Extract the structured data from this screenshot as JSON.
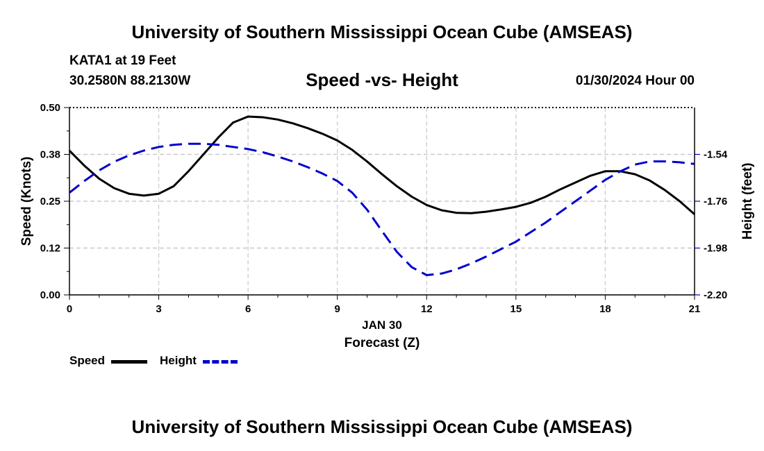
{
  "page": {
    "title": "University of Southern Mississippi Ocean Cube (AMSEAS)",
    "footer_title": "University of Southern Mississippi Ocean Cube (AMSEAS)",
    "station": "KATA1 at 19 Feet",
    "coords": "30.2580N  88.2130W",
    "datetime": "01/30/2024 Hour 00"
  },
  "legend": {
    "speed_label": "Speed",
    "height_label": "Height"
  },
  "chart_data": {
    "type": "line",
    "title": "Speed -vs- Height",
    "xlabel": "Forecast (Z)",
    "xsublabel": "JAN 30",
    "ylabel_left": "Speed (Knots)",
    "ylabel_right": "Height (feet)",
    "xlim": [
      0,
      21
    ],
    "ylim_left": [
      0,
      0.5
    ],
    "ylim_right": [
      -2.2,
      -1.32
    ],
    "x_ticks": [
      "0",
      "3",
      "6",
      "9",
      "12",
      "15",
      "18",
      "21"
    ],
    "left_ticks": [
      "0.00",
      "0.12",
      "0.25",
      "0.38",
      "0.50"
    ],
    "left_tick_values": [
      0,
      0.125,
      0.25,
      0.375,
      0.5
    ],
    "right_ticks": [
      "-2.20",
      "-1.98",
      "-1.76",
      "-1.54"
    ],
    "right_tick_values": [
      -2.2,
      -1.98,
      -1.76,
      -1.54
    ],
    "colors": {
      "speed": "#000000",
      "height": "#0000cc"
    },
    "series": [
      {
        "name": "Speed",
        "axis": "left",
        "x": [
          0,
          0.5,
          1,
          1.5,
          2,
          2.5,
          3,
          3.5,
          4,
          4.5,
          5,
          5.5,
          6,
          6.5,
          7,
          7.5,
          8,
          8.5,
          9,
          9.5,
          10,
          10.5,
          11,
          11.5,
          12,
          12.5,
          13,
          13.5,
          14,
          14.5,
          15,
          15.5,
          16,
          16.5,
          17,
          17.5,
          18,
          18.5,
          19,
          19.5,
          20,
          20.5,
          21
        ],
        "values": [
          0.385,
          0.345,
          0.31,
          0.285,
          0.27,
          0.265,
          0.27,
          0.29,
          0.33,
          0.375,
          0.42,
          0.46,
          0.476,
          0.474,
          0.468,
          0.458,
          0.445,
          0.43,
          0.412,
          0.387,
          0.356,
          0.322,
          0.29,
          0.262,
          0.24,
          0.226,
          0.219,
          0.218,
          0.222,
          0.228,
          0.235,
          0.246,
          0.262,
          0.282,
          0.3,
          0.318,
          0.33,
          0.33,
          0.322,
          0.305,
          0.28,
          0.25,
          0.215
        ]
      },
      {
        "name": "Height",
        "axis": "right",
        "x": [
          0,
          0.5,
          1,
          1.5,
          2,
          2.5,
          3,
          3.5,
          4,
          4.5,
          5,
          5.5,
          6,
          6.5,
          7,
          7.5,
          8,
          8.5,
          9,
          9.5,
          10,
          10.5,
          11,
          11.5,
          12,
          12.5,
          13,
          13.5,
          14,
          14.5,
          15,
          15.5,
          16,
          16.5,
          17,
          17.5,
          18,
          18.5,
          19,
          19.5,
          20,
          20.5,
          21
        ],
        "values": [
          -1.72,
          -1.665,
          -1.615,
          -1.575,
          -1.545,
          -1.522,
          -1.505,
          -1.495,
          -1.49,
          -1.49,
          -1.495,
          -1.505,
          -1.515,
          -1.53,
          -1.55,
          -1.573,
          -1.6,
          -1.63,
          -1.665,
          -1.72,
          -1.8,
          -1.9,
          -1.998,
          -2.07,
          -2.107,
          -2.1,
          -2.08,
          -2.052,
          -2.02,
          -1.985,
          -1.95,
          -1.905,
          -1.86,
          -1.81,
          -1.76,
          -1.71,
          -1.66,
          -1.62,
          -1.588,
          -1.573,
          -1.573,
          -1.577,
          -1.585
        ]
      }
    ]
  }
}
